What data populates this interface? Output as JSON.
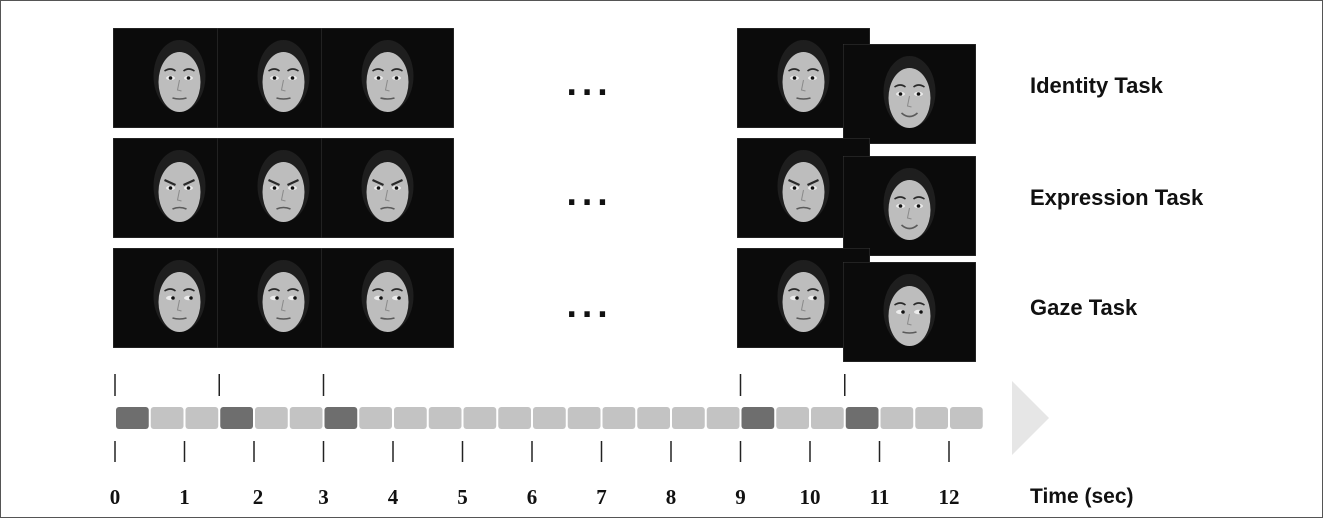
{
  "tasks": [
    {
      "label": "Identity Task",
      "ellipsis": "..."
    },
    {
      "label": "Expression Task",
      "ellipsis": "..."
    },
    {
      "label": "Gaze Task",
      "ellipsis": "..."
    }
  ],
  "time_axis": {
    "label": "Time (sec)",
    "ticks": [
      "0",
      "1",
      "2",
      "3",
      "4",
      "5",
      "6",
      "7",
      "8",
      "9",
      "10",
      "11",
      "12"
    ]
  },
  "colors": {
    "stimulus_on": "#6e6e6e",
    "interval": "#c3c3c3",
    "arrow": "#e6e6e6",
    "photo_bg": "#0b0b0b",
    "face": "#bdbdbd"
  },
  "timeline": {
    "stimulus_onsets_sec": [
      0,
      1.5,
      3,
      9,
      10.5
    ],
    "stimulus_duration_sec": 0.5
  }
}
